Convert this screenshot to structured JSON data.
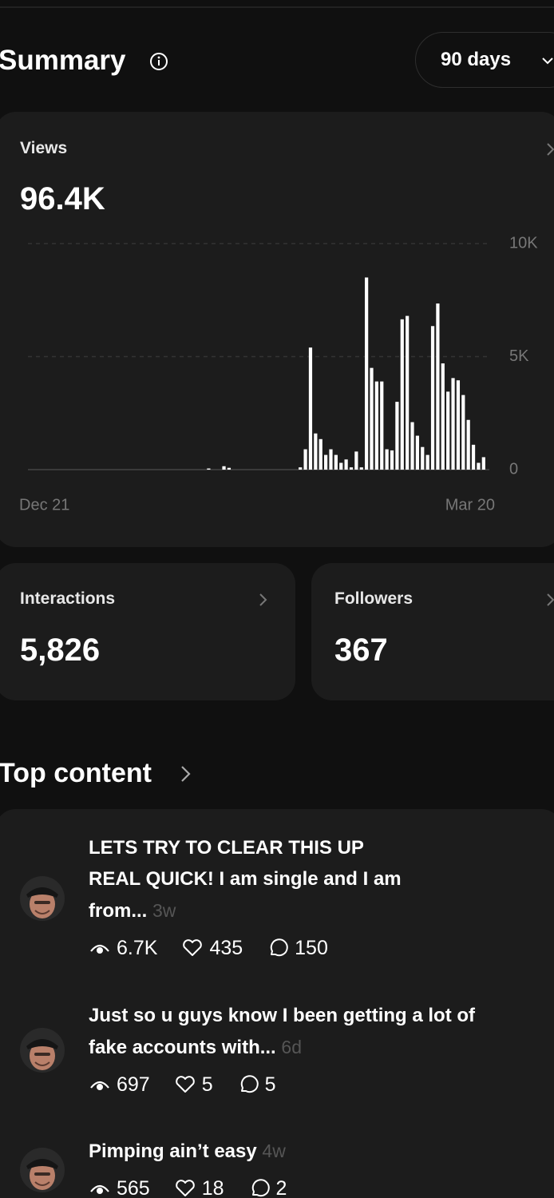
{
  "header": {
    "title": "Summary",
    "range": "90 days"
  },
  "views": {
    "label": "Views",
    "value": "96.4K"
  },
  "chart_data": {
    "type": "bar",
    "categories": [
      "Dec 21",
      null,
      null,
      null,
      null,
      null,
      null,
      null,
      null,
      null,
      null,
      null,
      null,
      null,
      null,
      null,
      null,
      null,
      null,
      null,
      null,
      null,
      null,
      null,
      null,
      null,
      null,
      null,
      null,
      null,
      null,
      null,
      null,
      null,
      null,
      null,
      null,
      null,
      null,
      null,
      null,
      null,
      null,
      null,
      null,
      null,
      null,
      null,
      null,
      null,
      null,
      null,
      null,
      null,
      null,
      null,
      null,
      null,
      null,
      null,
      null,
      null,
      null,
      null,
      null,
      null,
      null,
      null,
      null,
      null,
      null,
      null,
      null,
      null,
      null,
      null,
      null,
      null,
      null,
      null,
      null,
      null,
      null,
      null,
      null,
      null,
      null,
      null,
      null,
      "Mar 20"
    ],
    "values": [
      0,
      0,
      0,
      0,
      0,
      0,
      0,
      0,
      0,
      0,
      0,
      0,
      0,
      0,
      0,
      0,
      0,
      0,
      0,
      0,
      0,
      0,
      0,
      0,
      0,
      0,
      0,
      0,
      0,
      0,
      0,
      0,
      0,
      0,
      0,
      50,
      0,
      0,
      150,
      80,
      0,
      0,
      0,
      0,
      0,
      0,
      0,
      0,
      0,
      0,
      0,
      0,
      0,
      100,
      900,
      5400,
      1600,
      1350,
      650,
      900,
      650,
      300,
      450,
      100,
      800,
      100,
      8500,
      4500,
      3900,
      3900,
      900,
      850,
      3000,
      6650,
      6800,
      2100,
      1500,
      1000,
      650,
      6350,
      7350,
      4700,
      3450,
      4050,
      3950,
      3300,
      2200,
      1100,
      300,
      550
    ],
    "color": "#ffffff",
    "ylim": [
      0,
      10000
    ],
    "yticks": [
      0,
      {
        "value": 5000,
        "label": "5K"
      },
      {
        "value": 10000,
        "label": "10K"
      }
    ],
    "grid": true
  },
  "interactions": {
    "label": "Interactions",
    "value": "5,826"
  },
  "followers": {
    "label": "Followers",
    "value": 367
  },
  "top_content": {
    "title": "Top content",
    "posts": [
      {
        "lines": [
          "LETS TRY TO CLEAR THIS UP",
          "REAL QUICK! I am single and I am",
          "from..."
        ],
        "age": "3w",
        "views": "6.7K",
        "likes": 435,
        "replies": 150
      },
      {
        "lines": [
          "Just so u guys know I been getting a lot of",
          "fake accounts with..."
        ],
        "age": "6d",
        "views": 697,
        "likes": 5,
        "replies": 5
      },
      {
        "lines": [
          "Pimping ain’t easy"
        ],
        "age": "4w",
        "views": 565,
        "likes": 18,
        "replies": 2
      }
    ]
  }
}
